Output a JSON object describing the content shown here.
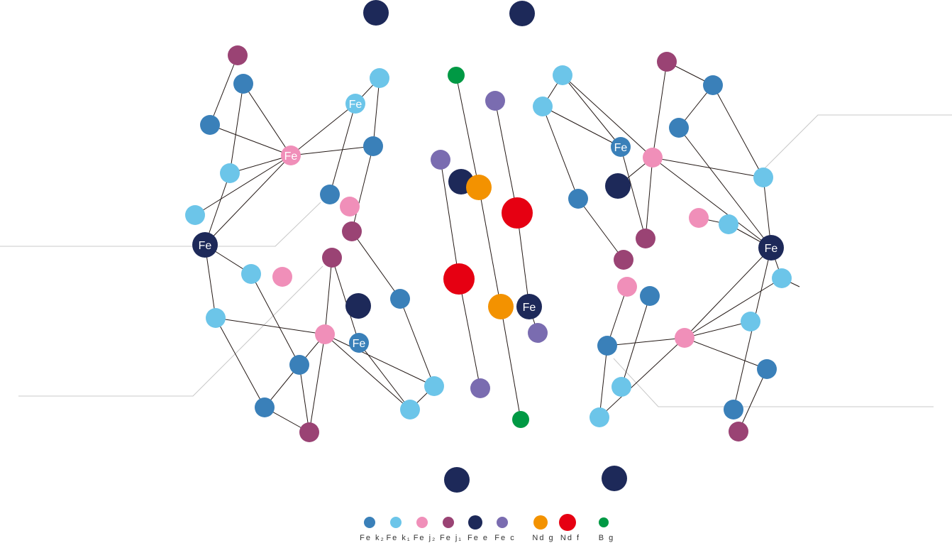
{
  "colors": {
    "Fe_k2": "#3a80b9",
    "Fe_k1": "#6cc5e9",
    "Fe_j2": "#f08fb9",
    "Fe_j1": "#9a4374",
    "Fe_e": "#1d2959",
    "Fe_c": "#7a6cb0",
    "Nd_g": "#f39200",
    "Nd_f": "#e60012",
    "B_g": "#009944"
  },
  "atom_label": "Fe",
  "legend": [
    {
      "key": "Fe_k2",
      "label": "Fe k₂"
    },
    {
      "key": "Fe_k1",
      "label": "Fe k₁"
    },
    {
      "key": "Fe_j2",
      "label": "Fe j₂"
    },
    {
      "key": "Fe_j1",
      "label": "Fe j₁"
    },
    {
      "key": "Fe_e",
      "label": "Fe e"
    },
    {
      "key": "Fe_c",
      "label": "Fe c"
    },
    {
      "key": "Nd_g",
      "label": "Nd g"
    },
    {
      "key": "Nd_f",
      "label": "Nd f"
    },
    {
      "key": "B_g",
      "label": "B g"
    }
  ]
}
